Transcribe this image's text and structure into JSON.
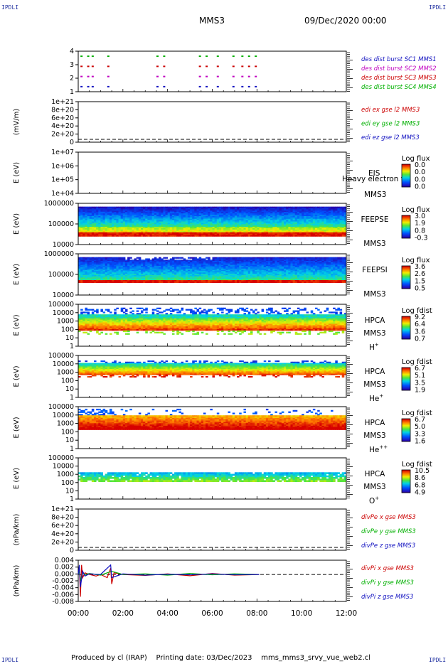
{
  "corners": {
    "tl": "IPDLI",
    "tr": "IPDLI",
    "bl": "IPDLI",
    "br": "IPDLI"
  },
  "header": {
    "spacecraft": "MMS3",
    "datetime": "09/Dec/2020 00:00"
  },
  "footer": {
    "text": "Produced by cl (IRAP)    Printing date: 03/Dec/2023    mms_mms3_srvy_vue_web2.cl"
  },
  "time_axis": {
    "ticks": [
      "00:00",
      "02:00",
      "04:00",
      "06:00",
      "08:00",
      "10:00",
      "12:00"
    ],
    "range_hours": [
      0,
      12
    ]
  },
  "colors": {
    "blue": "#1010c0",
    "magenta": "#c000c0",
    "red": "#cc0000",
    "green": "#00b000"
  },
  "chart_data": [
    {
      "type": "scatter",
      "panel": "burst",
      "ylabel": "",
      "y_ticks": [
        "4",
        "3",
        "2",
        "1"
      ],
      "ylim": [
        0.5,
        4.5
      ],
      "legend": [
        "des dist burst SC1 MMS1",
        "des dist burst SC2 MMS2",
        "des dist burst SC3 MMS3",
        "des dist burst SC4 MMS4"
      ],
      "series": [
        {
          "level": 4,
          "color": "green",
          "x_hours": [
            0.1,
            0.4,
            0.6,
            1.3,
            3.5,
            3.8,
            5.4,
            5.7,
            6.2,
            6.9,
            7.3,
            7.6,
            7.9
          ]
        },
        {
          "level": 3,
          "color": "red",
          "x_hours": [
            0.1,
            0.4,
            0.6,
            1.3,
            3.5,
            3.8,
            5.4,
            5.7,
            6.2,
            6.9,
            7.3,
            7.6,
            7.9
          ]
        },
        {
          "level": 2,
          "color": "magenta",
          "x_hours": [
            0.1,
            0.4,
            0.6,
            1.3,
            3.5,
            3.8,
            5.4,
            5.7,
            6.2,
            6.9,
            7.3,
            7.6,
            7.9
          ]
        },
        {
          "level": 1,
          "color": "blue",
          "x_hours": [
            0.1,
            0.4,
            0.6,
            1.3,
            3.5,
            3.8,
            5.4,
            5.7,
            6.2,
            6.9,
            7.3,
            7.6,
            7.9
          ]
        }
      ]
    },
    {
      "type": "line",
      "panel": "edi",
      "ylabel": "(mV/m)",
      "y_ticks": [
        "1e+21",
        "8e+20",
        "6e+20",
        "4e+20",
        "2e+20",
        "0"
      ],
      "ylim": [
        0,
        1e+21
      ],
      "legend": [
        "edi ex gse l2 MMS3",
        "edi ey gse l2 MMS3",
        "edi ez gse l2 MMS3"
      ],
      "dashed_zero": true,
      "series": []
    },
    {
      "type": "heatmap",
      "panel": "eis",
      "ylabel": "E (eV)",
      "y_ticks": [
        "1e+07",
        "1e+06",
        "1e+05",
        "1e+04"
      ],
      "labels": [
        "EIS",
        "Heavy electron to",
        "MMS3"
      ],
      "colorbar": {
        "title": "Log flux",
        "values": [
          "0.0",
          "0.0",
          "0.0",
          "0.0"
        ]
      },
      "empty": true
    },
    {
      "type": "heatmap",
      "panel": "feepse",
      "ylabel": "E (eV)",
      "y_ticks": [
        "1000000",
        "100000",
        "10000"
      ],
      "labels": [
        "FEEPSE",
        "MMS3"
      ],
      "colorbar": {
        "title": "Log flux",
        "values": [
          "3.0",
          "1.9",
          "0.8",
          "-0.3"
        ]
      }
    },
    {
      "type": "heatmap",
      "panel": "feepsi",
      "ylabel": "E (eV)",
      "y_ticks": [
        "1000000",
        "100000",
        "10000"
      ],
      "labels": [
        "FEEPSI",
        "MMS3"
      ],
      "colorbar": {
        "title": "Log flux",
        "values": [
          "3.6",
          "2.6",
          "1.5",
          "0.5"
        ]
      }
    },
    {
      "type": "heatmap",
      "panel": "hpca_h",
      "ylabel": "E (eV)",
      "y_ticks": [
        "100000",
        "10000",
        "1000",
        "100",
        "10",
        "1"
      ],
      "labels": [
        "HPCA",
        "MMS3"
      ],
      "species": "H",
      "species_sup": "+",
      "colorbar": {
        "title": "Log fdist",
        "values": [
          "9.2",
          "6.4",
          "3.6",
          "0.7"
        ]
      }
    },
    {
      "type": "heatmap",
      "panel": "hpca_he",
      "ylabel": "E (eV)",
      "y_ticks": [
        "100000",
        "10000",
        "1000",
        "100",
        "10",
        "1"
      ],
      "labels": [
        "HPCA",
        "MMS3"
      ],
      "species": "He",
      "species_sup": "+",
      "colorbar": {
        "title": "Log fdist",
        "values": [
          "6.7",
          "5.1",
          "3.5",
          "1.9"
        ]
      }
    },
    {
      "type": "heatmap",
      "panel": "hpca_hepp",
      "ylabel": "E (eV)",
      "y_ticks": [
        "100000",
        "10000",
        "1000",
        "100",
        "10",
        "1"
      ],
      "labels": [
        "HPCA",
        "MMS3"
      ],
      "species": "He",
      "species_sup": "++",
      "colorbar": {
        "title": "Log fdist",
        "values": [
          "6.7",
          "5.0",
          "3.3",
          "1.6"
        ]
      }
    },
    {
      "type": "heatmap",
      "panel": "hpca_o",
      "ylabel": "E (eV)",
      "y_ticks": [
        "100000",
        "10000",
        "1000",
        "100",
        "10",
        "1"
      ],
      "labels": [
        "HPCA",
        "MMS3"
      ],
      "species": "O",
      "species_sup": "+",
      "colorbar": {
        "title": "Log fdist",
        "values": [
          "10.5",
          "8.6",
          "6.8",
          "4.9"
        ]
      }
    },
    {
      "type": "line",
      "panel": "divpe",
      "ylabel": "(nPa/km)",
      "y_ticks": [
        "1e+21",
        "8e+20",
        "6e+20",
        "4e+20",
        "2e+20",
        "0"
      ],
      "ylim": [
        0,
        1e+21
      ],
      "legend": [
        "divPe x gse MMS3",
        "divPe y gse MMS3",
        "divPe z gse MMS3"
      ],
      "dashed_zero": true,
      "series": []
    },
    {
      "type": "line",
      "panel": "divpi",
      "ylabel": "(nPa/km)",
      "y_ticks": [
        "0.004",
        "0.002",
        "0.000",
        "-0.002",
        "-0.004",
        "-0.006",
        "-0.008"
      ],
      "ylim": [
        -0.0085,
        0.0045
      ],
      "legend": [
        "divPi x gse MMS3",
        "divPi y gse MMS3",
        "divPi z gse MMS3"
      ],
      "dashed_zero": true,
      "series": [
        {
          "name": "divPi x gse MMS3",
          "color": "red",
          "x_hours": [
            0.0,
            0.05,
            0.1,
            0.15,
            0.2,
            0.3,
            0.5,
            0.8,
            1.0,
            1.3,
            1.45,
            1.5,
            1.6,
            2.0,
            3.0,
            4.0,
            5.0,
            6.0,
            7.0,
            8.1
          ],
          "y": [
            0.0,
            0.002,
            -0.007,
            0.003,
            -0.001,
            0.0005,
            0.0,
            -0.0005,
            0.0,
            -0.001,
            0.002,
            -0.003,
            0.0005,
            0.0,
            -0.0003,
            0.0002,
            -0.0004,
            0.0003,
            -0.0002,
            0.0
          ]
        },
        {
          "name": "divPi y gse MMS3",
          "color": "green",
          "x_hours": [
            0.0,
            0.05,
            0.1,
            0.2,
            0.3,
            0.5,
            1.0,
            1.5,
            2.0,
            3.0,
            4.0,
            5.0,
            6.0,
            7.0,
            8.1
          ],
          "y": [
            0.0,
            0.001,
            -0.002,
            0.0005,
            0.0,
            0.0003,
            -0.0002,
            0.001,
            0.0,
            0.0002,
            -0.0002,
            0.0003,
            -0.0001,
            0.0002,
            0.0
          ]
        },
        {
          "name": "divPi z gse MMS3",
          "color": "blue",
          "x_hours": [
            0.0,
            0.05,
            0.1,
            0.2,
            0.3,
            0.5,
            1.0,
            1.45,
            1.5,
            2.0,
            3.0,
            4.0,
            5.0,
            6.0,
            7.0,
            8.1
          ],
          "y": [
            0.0,
            0.003,
            -0.004,
            0.001,
            -0.0005,
            0.0002,
            0.0,
            0.003,
            -0.001,
            0.0002,
            -0.0002,
            0.0001,
            -0.0001,
            0.0002,
            -0.0001,
            0.0
          ]
        }
      ]
    }
  ]
}
